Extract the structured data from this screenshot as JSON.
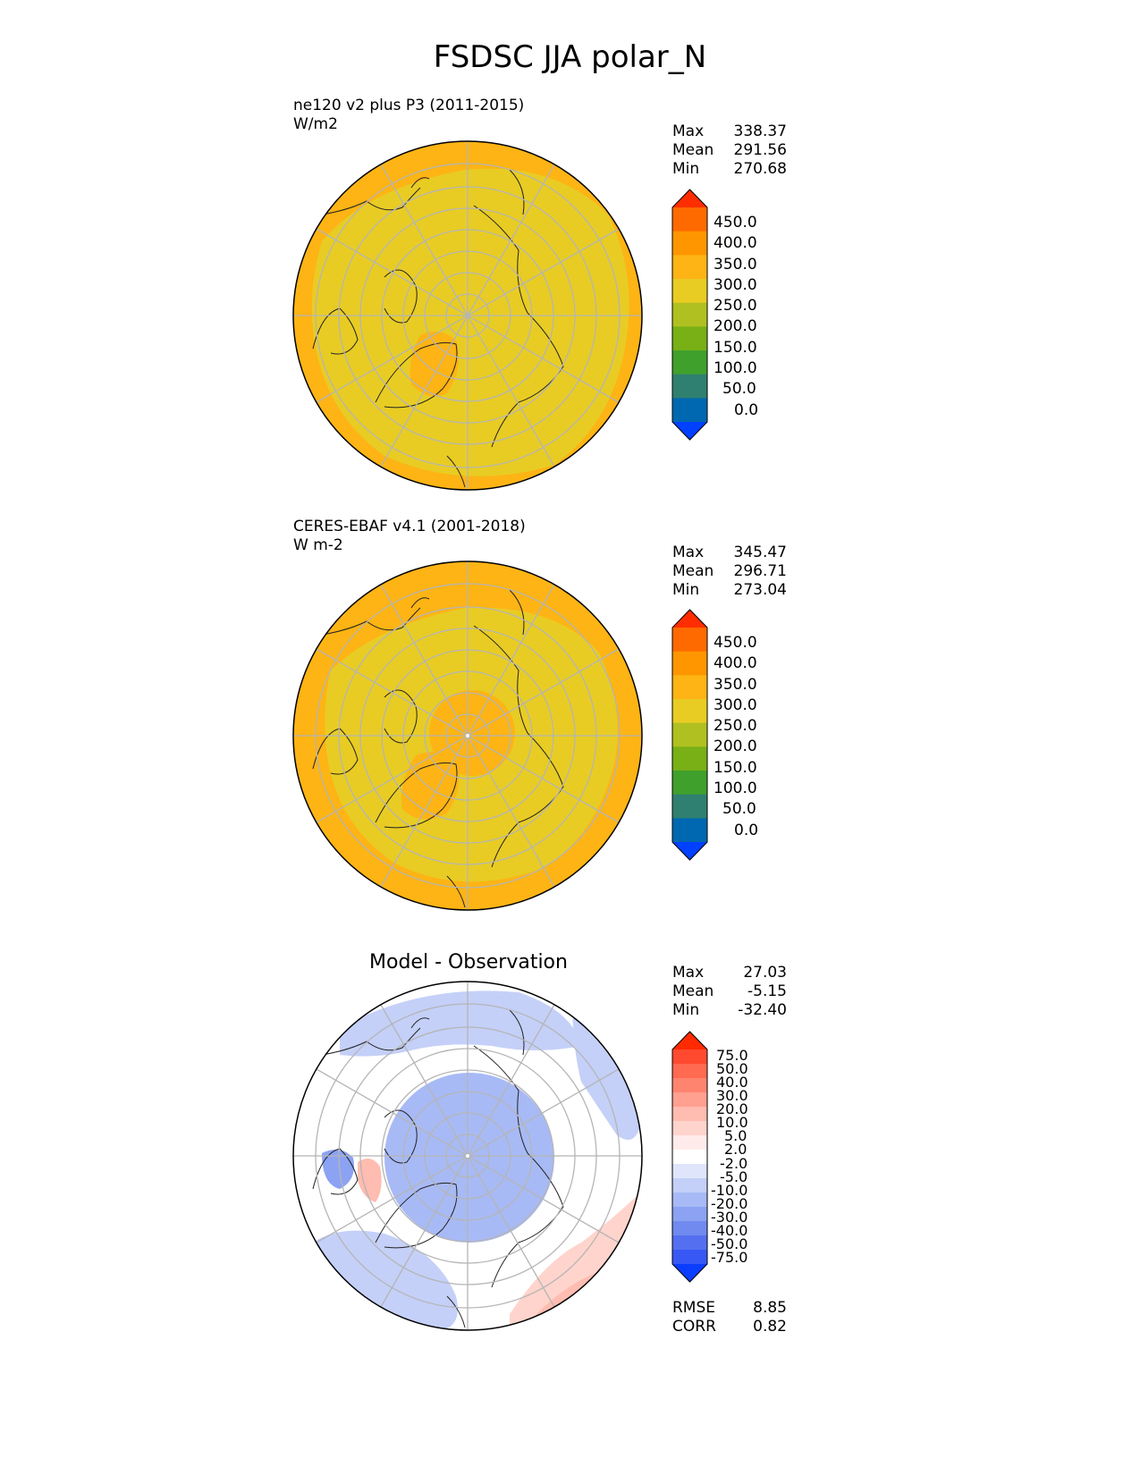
{
  "title": "FSDSC JJA polar_N",
  "panels": [
    {
      "id": "test",
      "name_line": "ne120 v2 plus P3 (2011-2015)",
      "units": "W/m2",
      "stats": [
        {
          "label": "Max",
          "value": "338.37"
        },
        {
          "label": "Mean",
          "value": "291.56"
        },
        {
          "label": "Min",
          "value": "270.68"
        }
      ],
      "colorbar": {
        "ticks": [
          "450.0",
          "400.0",
          "350.0",
          "300.0",
          "250.0",
          "200.0",
          "150.0",
          "100.0",
          "50.0",
          "0.0"
        ],
        "colors": [
          "#ff2d00",
          "#ff6a00",
          "#ff9600",
          "#fdb414",
          "#e8cc24",
          "#b0c020",
          "#78b016",
          "#3fa02c",
          "#2f8070",
          "#0068b0",
          "#0040ff"
        ]
      }
    },
    {
      "id": "ref",
      "name_line": "CERES-EBAF v4.1 (2001-2018)",
      "units": "W m-2",
      "stats": [
        {
          "label": "Max",
          "value": "345.47"
        },
        {
          "label": "Mean",
          "value": "296.71"
        },
        {
          "label": "Min",
          "value": "273.04"
        }
      ],
      "colorbar": {
        "ticks": [
          "450.0",
          "400.0",
          "350.0",
          "300.0",
          "250.0",
          "200.0",
          "150.0",
          "100.0",
          "50.0",
          "0.0"
        ],
        "colors": [
          "#ff2d00",
          "#ff6a00",
          "#ff9600",
          "#fdb414",
          "#e8cc24",
          "#b0c020",
          "#78b016",
          "#3fa02c",
          "#2f8070",
          "#0068b0",
          "#0040ff"
        ]
      }
    },
    {
      "id": "diff",
      "title": "Model - Observation",
      "stats": [
        {
          "label": "Max",
          "value": "27.03"
        },
        {
          "label": "Mean",
          "value": "-5.15"
        },
        {
          "label": "Min",
          "value": "-32.40"
        }
      ],
      "metrics": [
        {
          "label": "RMSE",
          "value": "8.85"
        },
        {
          "label": "CORR",
          "value": "0.82"
        }
      ],
      "colorbar": {
        "ticks": [
          "75.0",
          "50.0",
          "40.0",
          "30.0",
          "20.0",
          "10.0",
          "5.0",
          "2.0",
          "-2.0",
          "-5.0",
          "-10.0",
          "-20.0",
          "-30.0",
          "-40.0",
          "-50.0",
          "-75.0"
        ],
        "colors": [
          "#ff2a00",
          "#ff4a30",
          "#ff6a50",
          "#ff8470",
          "#ffa090",
          "#ffbcb0",
          "#ffd4cc",
          "#ffecea",
          "#ffffff",
          "#dfe6fb",
          "#c4d0f8",
          "#a8baf5",
          "#8ca2f2",
          "#708af0",
          "#5470f0",
          "#3858f5",
          "#0a3dff"
        ]
      }
    }
  ],
  "chart_data": [
    {
      "type": "heatmap",
      "projection": "north-polar-stereographic",
      "title": "ne120 v2 plus P3 (2011-2015)",
      "units": "W/m2",
      "stats": {
        "max": 338.37,
        "mean": 291.56,
        "min": 270.68
      },
      "levels": [
        0,
        50,
        100,
        150,
        200,
        250,
        300,
        350,
        400,
        450
      ],
      "fill_colors": {
        "ocean_dominant": "#e8cc24",
        "land_margin": "#fdb414"
      }
    },
    {
      "type": "heatmap",
      "projection": "north-polar-stereographic",
      "title": "CERES-EBAF v4.1 (2001-2018)",
      "units": "W m-2",
      "stats": {
        "max": 345.47,
        "mean": 296.71,
        "min": 273.04
      },
      "levels": [
        0,
        50,
        100,
        150,
        200,
        250,
        300,
        350,
        400,
        450
      ],
      "fill_colors": {
        "ocean_dominant": "#e8cc24",
        "land_margin": "#fdb414"
      }
    },
    {
      "type": "heatmap",
      "projection": "north-polar-stereographic",
      "title": "Model - Observation",
      "stats": {
        "max": 27.03,
        "mean": -5.15,
        "min": -32.4,
        "rmse": 8.85,
        "corr": 0.82
      },
      "levels": [
        -75,
        -50,
        -40,
        -30,
        -20,
        -10,
        -5,
        -2,
        2,
        5,
        10,
        20,
        30,
        40,
        50,
        75
      ]
    }
  ]
}
